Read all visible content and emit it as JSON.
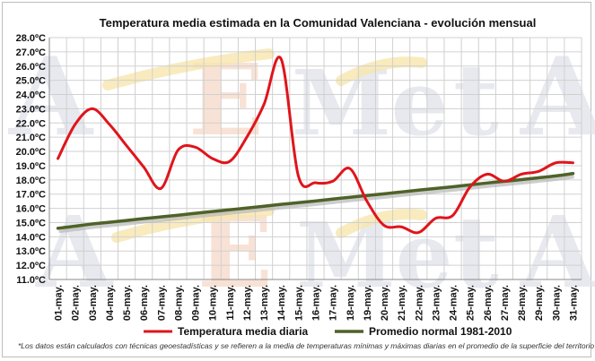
{
  "colors": {
    "daily": "#e0141b",
    "normal": "#4f6228",
    "normal_shadow": "#b8b8b8",
    "grid": "#d0d0d0",
    "plot_bg": "#ffffff",
    "watermark_gray": "#dfe2ea",
    "watermark_yellow": "#f8e6ad",
    "watermark_orange": "#f6d9c8"
  },
  "chart_data": {
    "type": "line",
    "title": "Temperatura media estimada en la Comunidad Valenciana - evolución mensual",
    "footnote": "*Los datos están calculados con técnicas geoestadísticas y se refieren a la media de temperaturas mínimas y máximas diarias en el promedio de la superficie del territorio",
    "watermark": "AEMet",
    "categories": [
      "01-may.",
      "02-may.",
      "03-may.",
      "04-may.",
      "05-may.",
      "06-may.",
      "07-may.",
      "08-may.",
      "09-may.",
      "10-may.",
      "11-may.",
      "12-may.",
      "13-may.",
      "14-may.",
      "15-may.",
      "16-may.",
      "17-may.",
      "18-may.",
      "19-may.",
      "20-may.",
      "21-may.",
      "22-may.",
      "23-may.",
      "24-may.",
      "25-may.",
      "26-may.",
      "27-may.",
      "28-may.",
      "29-may.",
      "30-may.",
      "31-may."
    ],
    "yticks": [
      "11.0ºC",
      "12.0ºC",
      "13.0ºC",
      "14.0ºC",
      "15.0ºC",
      "16.0ºC",
      "17.0ºC",
      "18.0ºC",
      "19.0ºC",
      "20.0ºC",
      "21.0ºC",
      "22.0ºC",
      "23.0ºC",
      "24.0ºC",
      "25.0ºC",
      "26.0ºC",
      "27.0ºC",
      "28.0ºC"
    ],
    "ylim": [
      11,
      28
    ],
    "grid": true,
    "legend_position": "bottom",
    "series": [
      {
        "name": "Temperatura media diaria",
        "values": [
          19.5,
          21.9,
          23.0,
          21.9,
          20.4,
          18.9,
          17.4,
          20.1,
          20.3,
          19.5,
          19.3,
          21.0,
          23.3,
          26.5,
          18.3,
          17.8,
          17.9,
          18.8,
          16.5,
          14.8,
          14.7,
          14.3,
          15.3,
          15.5,
          17.5,
          18.4,
          17.9,
          18.4,
          18.6,
          19.2,
          19.2
        ]
      },
      {
        "name": "Promedio normal 1981-2010",
        "values": [
          14.6,
          14.75,
          14.9,
          15.02,
          15.15,
          15.28,
          15.4,
          15.52,
          15.65,
          15.78,
          15.9,
          16.02,
          16.15,
          16.28,
          16.4,
          16.52,
          16.65,
          16.78,
          16.9,
          17.02,
          17.15,
          17.28,
          17.4,
          17.52,
          17.65,
          17.78,
          17.9,
          18.02,
          18.15,
          18.28,
          18.45
        ]
      }
    ]
  }
}
